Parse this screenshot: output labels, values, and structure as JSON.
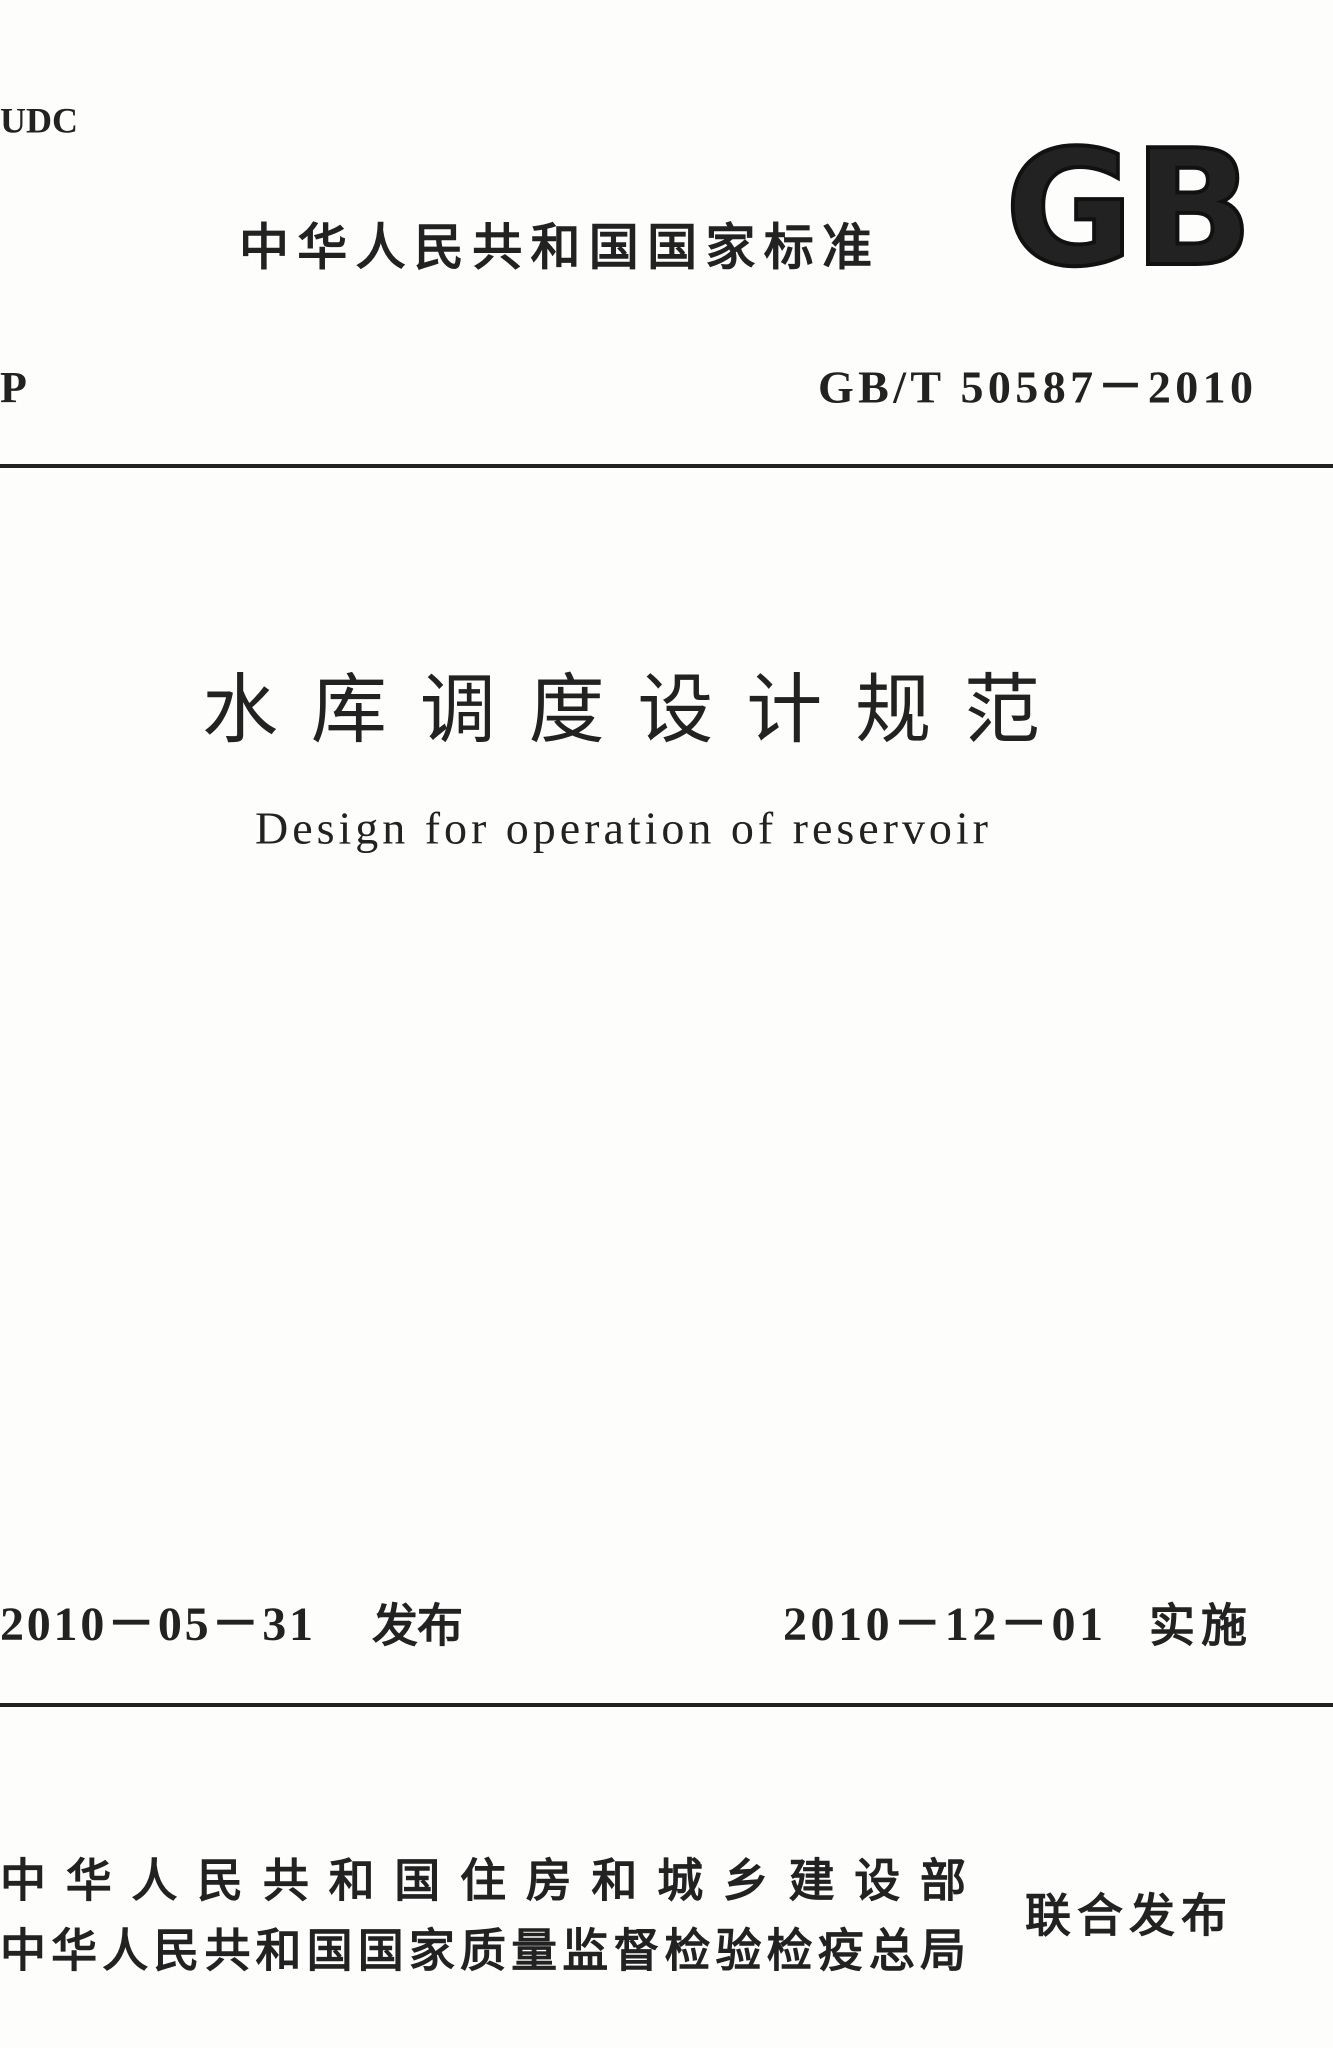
{
  "header": {
    "udc": "UDC",
    "standard_type": "中华人民共和国国家标准",
    "logo": "GB",
    "classification": "P",
    "code": "GB/T 50587－2010"
  },
  "title": {
    "chinese": "水库调度设计规范",
    "english": "Design for operation of reservoir"
  },
  "dates": {
    "issue_date": "2010－05－31",
    "issue_label": "发布",
    "implement_date": "2010－12－01",
    "implement_label": "实施"
  },
  "issuers": {
    "lines": [
      "中华人民共和国住房和城乡建设部",
      "中华人民共和国国家质量监督检验检疫总局"
    ],
    "joint_label": "联合发布"
  }
}
